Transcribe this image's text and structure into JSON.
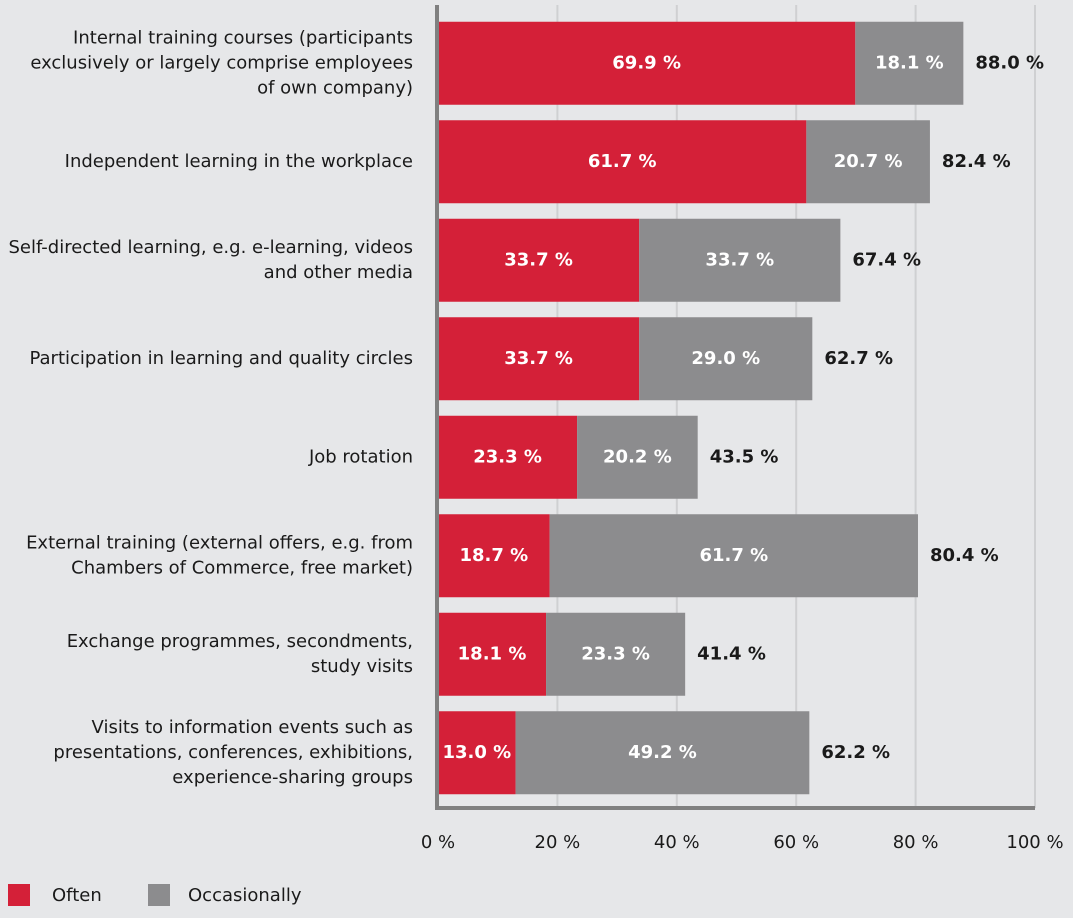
{
  "chart_data": {
    "type": "stacked-bar-horizontal",
    "categories": [
      "Internal training courses (participants\nexclusively or largely comprise employees\nof own company)",
      "Independent learning in the workplace",
      "Self-directed learning, e.g. e-learning, videos\nand other media",
      "Participation in learning and quality circles",
      "Job rotation",
      "External training (external offers, e.g. from\nChambers of Commerce, free market)",
      "Exchange programmes, secondments,\nstudy visits",
      "Visits to information events such as\npresentations, conferences, exhibitions,\nexperience-sharing groups"
    ],
    "series": [
      {
        "name": "Often",
        "color": "#d42038",
        "values": [
          69.9,
          61.7,
          33.7,
          33.7,
          23.3,
          18.7,
          18.1,
          13.0
        ],
        "value_labels": [
          "69.9 %",
          "61.7 %",
          "33.7 %",
          "33.7 %",
          "23.3 %",
          "18.7 %",
          "18.1 %",
          "13.0 %"
        ]
      },
      {
        "name": "Occasionally",
        "color": "#8c8c8e",
        "values": [
          18.1,
          20.7,
          33.7,
          29.0,
          20.2,
          61.7,
          23.3,
          49.2
        ],
        "value_labels": [
          "18.1 %",
          "20.7 %",
          "33.7 %",
          "29.0 %",
          "20.2 %",
          "61.7 %",
          "23.3 %",
          "49.2 %"
        ]
      }
    ],
    "totals": [
      88.0,
      82.4,
      67.4,
      62.7,
      43.5,
      80.4,
      41.4,
      62.2
    ],
    "total_labels": [
      "88.0 %",
      "82.4 %",
      "67.4 %",
      "62.7 %",
      "43.5 %",
      "80.4 %",
      "41.4 %",
      "62.2 %"
    ],
    "xlim": [
      0,
      100
    ],
    "xticks": [
      {
        "value": 0,
        "label": "0 %"
      },
      {
        "value": 20,
        "label": "20 %"
      },
      {
        "value": 40,
        "label": "40 %"
      },
      {
        "value": 60,
        "label": "60 %"
      },
      {
        "value": 80,
        "label": "80 %"
      },
      {
        "value": 100,
        "label": "100 %"
      }
    ],
    "grid": true,
    "legend": "bottom-left"
  }
}
